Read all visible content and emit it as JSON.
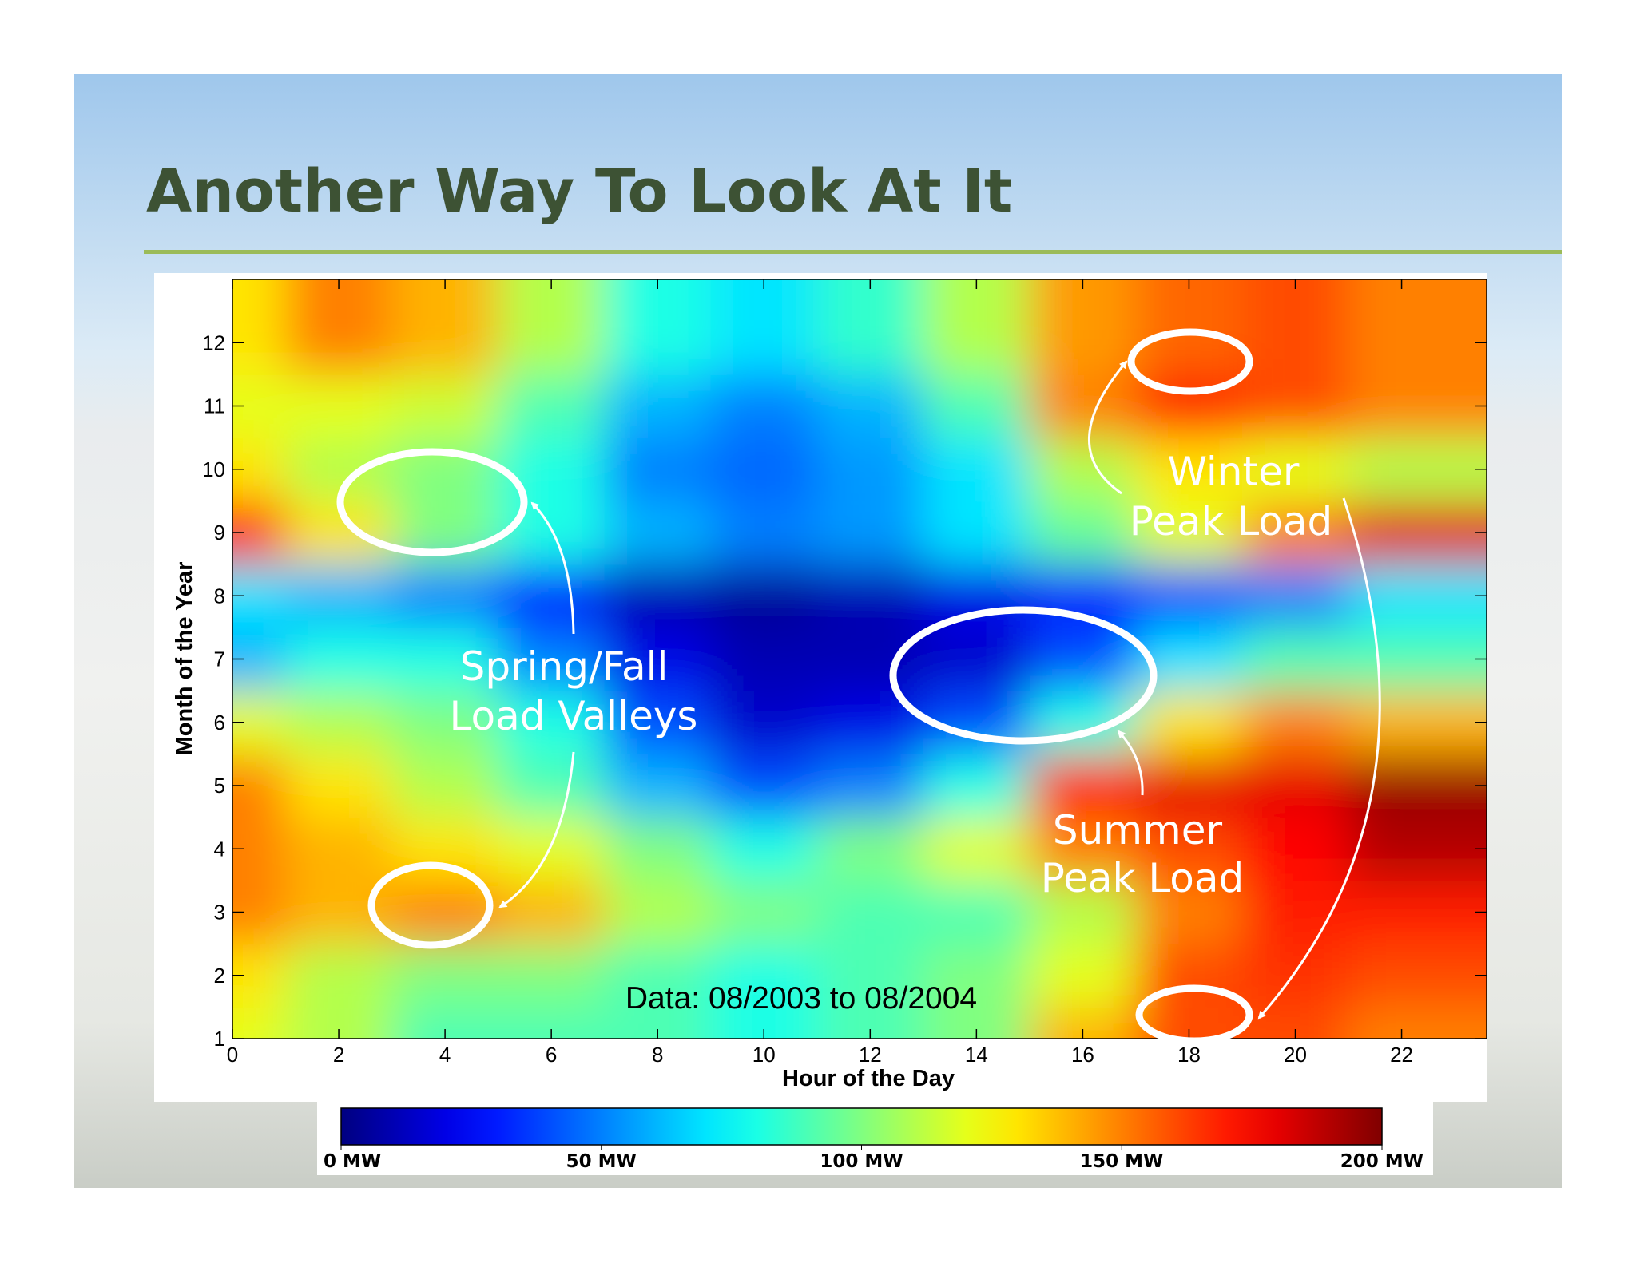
{
  "chart_data": {
    "type": "heatmap",
    "title": "Another Way To Look At It",
    "xlabel": "Hour of the Day",
    "ylabel": "Month of the Year",
    "x": [
      0,
      2,
      4,
      6,
      8,
      10,
      12,
      14,
      16,
      18,
      20,
      22
    ],
    "y": [
      1,
      2,
      3,
      4,
      5,
      6,
      7,
      8,
      9,
      10,
      11,
      12
    ],
    "values": [
      [
        120,
        110,
        90,
        90,
        90,
        80,
        90,
        100,
        140,
        160,
        160,
        150
      ],
      [
        130,
        110,
        100,
        100,
        90,
        80,
        90,
        100,
        120,
        160,
        165,
        160
      ],
      [
        150,
        140,
        150,
        140,
        110,
        100,
        90,
        90,
        110,
        150,
        170,
        170
      ],
      [
        150,
        140,
        130,
        120,
        100,
        80,
        100,
        120,
        150,
        160,
        175,
        190
      ],
      [
        150,
        130,
        110,
        90,
        60,
        40,
        50,
        80,
        170,
        180,
        180,
        195
      ],
      [
        120,
        110,
        100,
        80,
        40,
        15,
        20,
        40,
        80,
        130,
        150,
        140
      ],
      [
        60,
        80,
        80,
        50,
        20,
        10,
        10,
        15,
        40,
        70,
        90,
        90
      ],
      [
        70,
        60,
        50,
        30,
        10,
        5,
        10,
        20,
        30,
        40,
        50,
        70
      ],
      [
        175,
        130,
        100,
        80,
        60,
        50,
        55,
        70,
        95,
        120,
        150,
        180
      ],
      [
        130,
        110,
        100,
        80,
        50,
        45,
        55,
        70,
        110,
        130,
        120,
        110
      ],
      [
        120,
        120,
        115,
        90,
        60,
        50,
        60,
        90,
        150,
        170,
        160,
        150
      ],
      [
        130,
        150,
        140,
        110,
        80,
        70,
        85,
        110,
        145,
        155,
        160,
        150
      ]
    ],
    "xlim": [
      0,
      23.6
    ],
    "ylim": [
      1,
      13
    ],
    "xticks": [
      0,
      2,
      4,
      6,
      8,
      10,
      12,
      14,
      16,
      18,
      20,
      22
    ],
    "yticks": [
      1,
      2,
      3,
      4,
      5,
      6,
      7,
      8,
      9,
      10,
      11,
      12
    ],
    "colorscale": "jet",
    "clim": [
      0,
      200
    ],
    "colorbar_ticks": [
      {
        "value": 0,
        "label": "0 MW"
      },
      {
        "value": 50,
        "label": "50 MW"
      },
      {
        "value": 100,
        "label": "100 MW"
      },
      {
        "value": 150,
        "label": "150 MW"
      },
      {
        "value": 200,
        "label": "200 MW"
      }
    ],
    "note": "Data: 08/2003 to 08/2004",
    "annotations": [
      {
        "lines": [
          "Spring/Fall",
          "Load Valleys"
        ]
      },
      {
        "lines": [
          "Winter",
          "Peak Load"
        ]
      },
      {
        "lines": [
          "Summer",
          "Peak Load"
        ]
      }
    ]
  }
}
